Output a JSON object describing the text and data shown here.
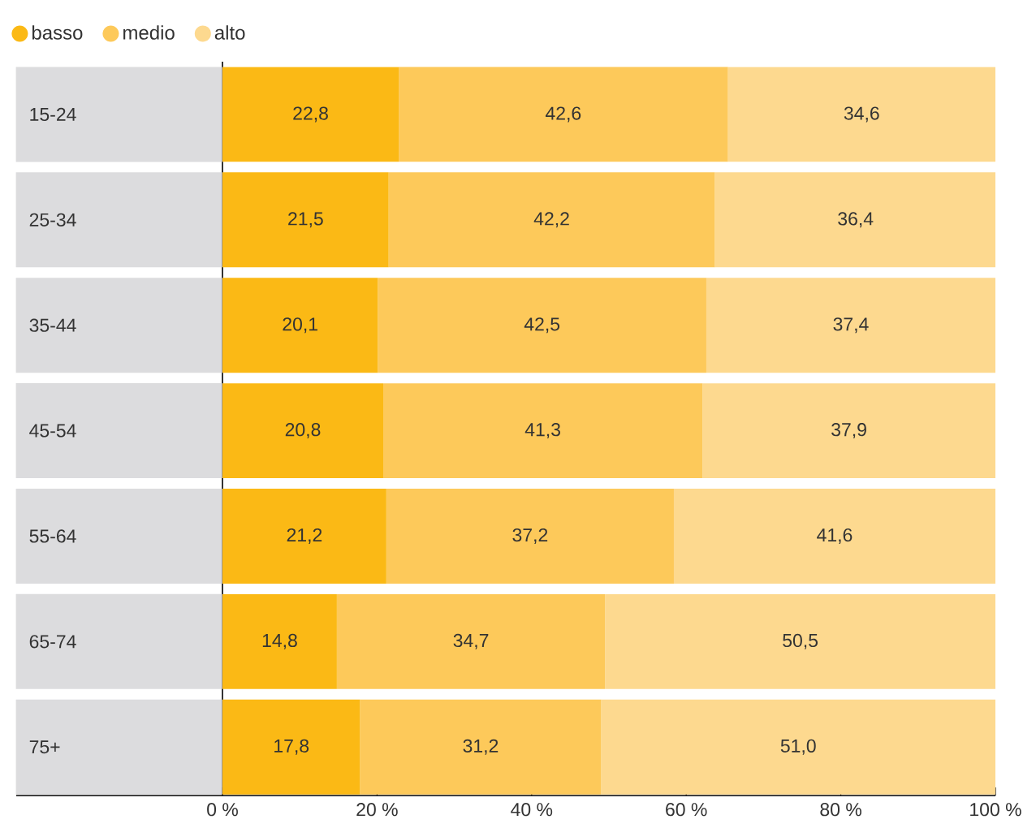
{
  "chart_data": {
    "type": "bar",
    "orientation": "horizontal",
    "stacked": true,
    "legend": "top left",
    "categories": [
      "15-24",
      "25-34",
      "35-44",
      "45-54",
      "55-64",
      "65-74",
      "75+"
    ],
    "series": [
      {
        "name": "basso",
        "color": "#fbb915",
        "values": [
          22.8,
          21.5,
          20.1,
          20.8,
          21.2,
          14.8,
          17.8
        ],
        "value_labels": [
          "22,8",
          "21,5",
          "20,1",
          "20,8",
          "21,2",
          "14,8",
          "17,8"
        ]
      },
      {
        "name": "medio",
        "color": "#fdc95a",
        "values": [
          42.6,
          42.2,
          42.5,
          41.3,
          37.2,
          34.7,
          31.2
        ],
        "value_labels": [
          "42,6",
          "42,2",
          "42,5",
          "41,3",
          "37,2",
          "34,7",
          "31,2"
        ]
      },
      {
        "name": "alto",
        "color": "#fdd98f",
        "values": [
          34.6,
          36.4,
          37.4,
          37.9,
          41.6,
          50.5,
          51.0
        ],
        "value_labels": [
          "34,6",
          "36,4",
          "37,4",
          "37,9",
          "41,6",
          "50,5",
          "51,0"
        ]
      }
    ],
    "xlim": [
      0,
      100
    ],
    "xticks": [
      {
        "value": 0,
        "label": "0 %"
      },
      {
        "value": 20,
        "label": "20 %"
      },
      {
        "value": 40,
        "label": "40 %"
      },
      {
        "value": 60,
        "label": "60 %"
      },
      {
        "value": 80,
        "label": "80 %"
      },
      {
        "value": 100,
        "label": "100 %"
      }
    ]
  }
}
